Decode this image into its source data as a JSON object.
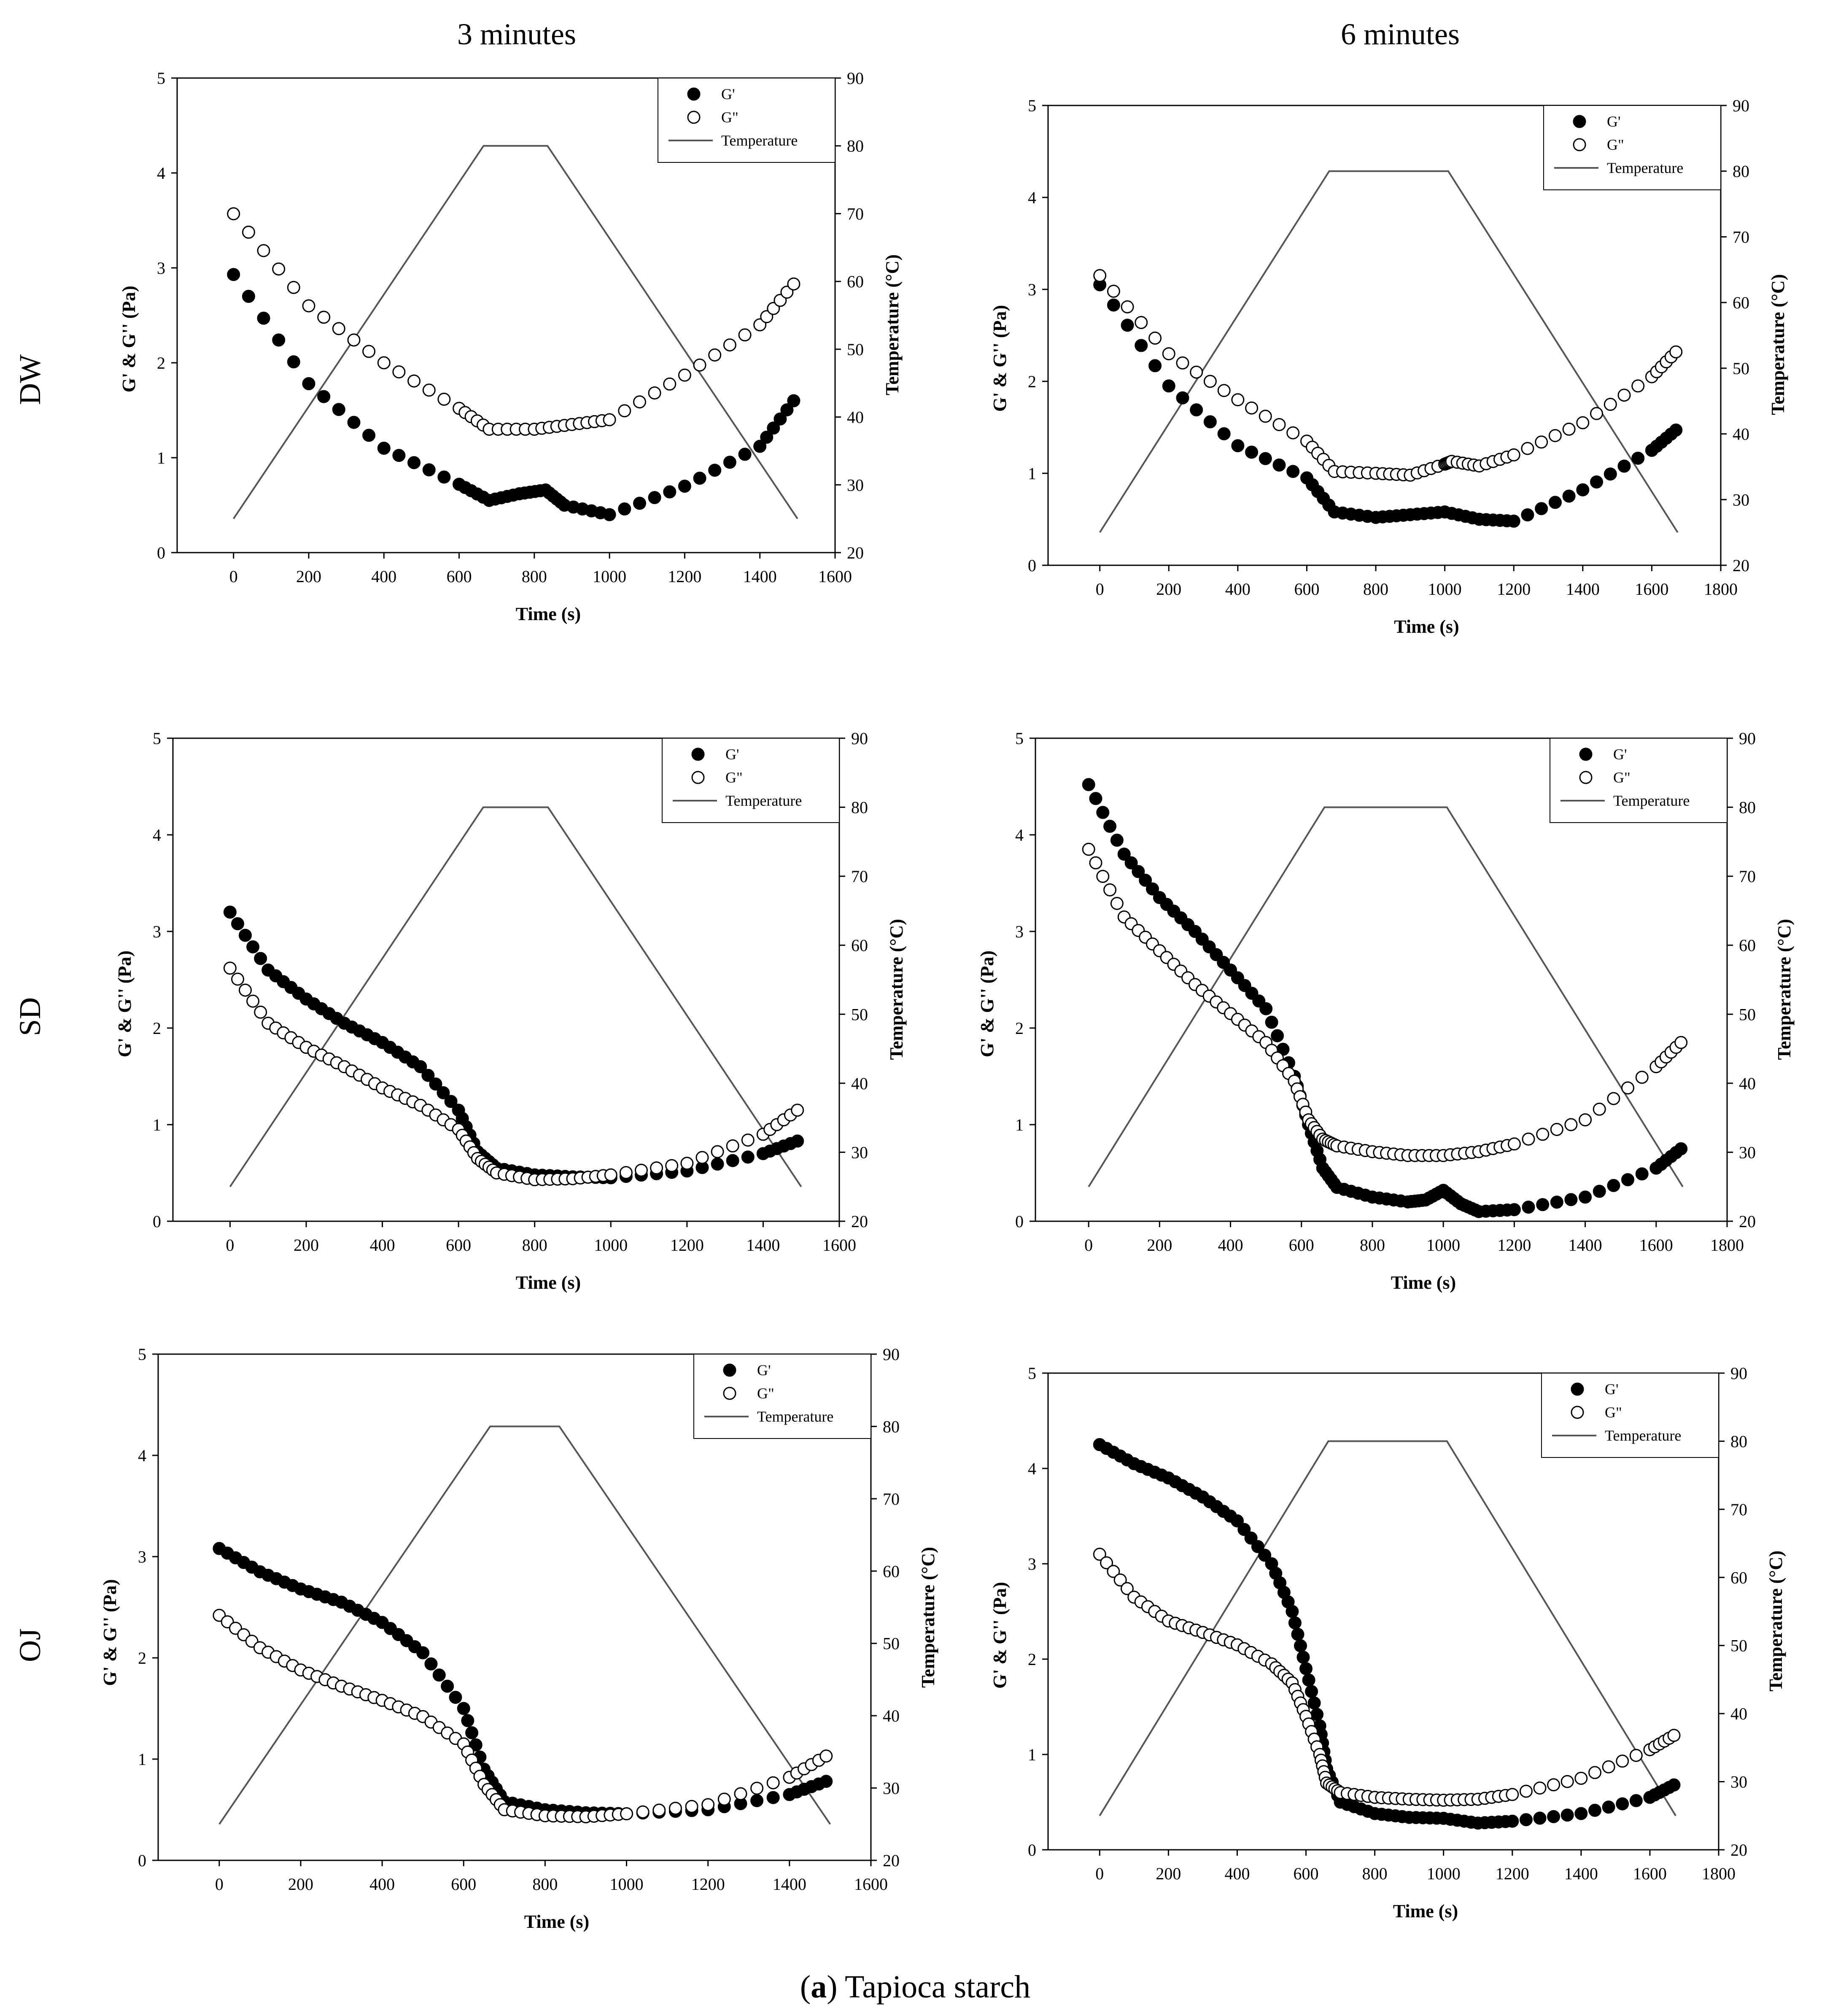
{
  "figure": {
    "col_titles": [
      "3 minutes",
      "6 minutes"
    ],
    "row_titles": [
      "DW",
      "SD",
      "OJ"
    ],
    "caption_bold": "a",
    "caption_rest": " Tapioca starch",
    "colors": {
      "filled": "#000000",
      "open": "#ffffff",
      "line": "#555555"
    }
  },
  "chart_data": [
    {
      "type": "scatter",
      "row": "DW",
      "col": "3 minutes",
      "xlabel": "Time (s)",
      "ylabel": "G' & G'' (Pa)",
      "y2label": "Temperature (°C)",
      "xlim": [
        -150,
        1600
      ],
      "ylim": [
        0,
        5
      ],
      "y2lim": [
        20,
        90
      ],
      "xticks": [
        0,
        200,
        400,
        600,
        800,
        1000,
        1200,
        1400,
        1600
      ],
      "yticks": [
        0,
        1,
        2,
        3,
        4,
        5
      ],
      "y2ticks": [
        20,
        30,
        40,
        50,
        60,
        70,
        80,
        90
      ],
      "legend": [
        "G'",
        "G\"",
        "Temperature"
      ],
      "legend_position": "top-right",
      "series": [
        {
          "name": "G'",
          "marker": "filled",
          "x": [
            0,
            200,
            400,
            600,
            680,
            760,
            830,
            880,
            1000,
            1200,
            1400,
            1490
          ],
          "y": [
            2.93,
            1.78,
            1.1,
            0.72,
            0.55,
            0.62,
            0.66,
            0.5,
            0.4,
            0.7,
            1.12,
            1.6
          ]
        },
        {
          "name": "G\"",
          "marker": "open",
          "x": [
            0,
            200,
            400,
            600,
            680,
            800,
            900,
            1000,
            1200,
            1400,
            1490
          ],
          "y": [
            3.57,
            2.6,
            2.0,
            1.52,
            1.3,
            1.3,
            1.35,
            1.4,
            1.87,
            2.4,
            2.83
          ]
        },
        {
          "name": "Temperature",
          "marker": "line",
          "x": [
            0,
            665,
            835,
            1500
          ],
          "y": [
            25,
            80,
            80,
            25
          ]
        }
      ]
    },
    {
      "type": "scatter",
      "row": "DW",
      "col": "6 minutes",
      "xlabel": "Time (s)",
      "ylabel": "G' & G'' (Pa)",
      "y2label": "Temperature (°C)",
      "xlim": [
        -150,
        1800
      ],
      "ylim": [
        0,
        5
      ],
      "y2lim": [
        20,
        90
      ],
      "xticks": [
        0,
        200,
        400,
        600,
        800,
        1000,
        1200,
        1400,
        1600,
        1800
      ],
      "yticks": [
        0,
        1,
        2,
        3,
        4,
        5
      ],
      "y2ticks": [
        20,
        30,
        40,
        50,
        60,
        70,
        80,
        90
      ],
      "legend": [
        "G'",
        "G\"",
        "Temperature"
      ],
      "legend_position": "top-right",
      "series": [
        {
          "name": "G'",
          "marker": "filled",
          "x": [
            0,
            200,
            400,
            600,
            680,
            800,
            900,
            1000,
            1100,
            1200,
            1400,
            1600,
            1670
          ],
          "y": [
            3.05,
            1.95,
            1.3,
            0.95,
            0.58,
            0.52,
            0.55,
            0.58,
            0.5,
            0.48,
            0.82,
            1.25,
            1.47
          ]
        },
        {
          "name": "G\"",
          "marker": "open",
          "x": [
            0,
            200,
            400,
            600,
            680,
            800,
            900,
            1000,
            1020,
            1100,
            1200,
            1400,
            1600,
            1670
          ],
          "y": [
            3.15,
            2.3,
            1.8,
            1.35,
            1.02,
            1.0,
            0.98,
            1.1,
            1.13,
            1.08,
            1.2,
            1.55,
            2.05,
            2.32
          ]
        },
        {
          "name": "Temperature",
          "marker": "line",
          "x": [
            0,
            665,
            1010,
            1675
          ],
          "y": [
            25,
            80,
            80,
            25
          ]
        }
      ]
    },
    {
      "type": "scatter",
      "row": "SD",
      "col": "3 minutes",
      "xlabel": "Time (s)",
      "ylabel": "G' & G'' (Pa)",
      "y2label": "Temperature (°C)",
      "xlim": [
        -150,
        1600
      ],
      "ylim": [
        0,
        5
      ],
      "y2lim": [
        20,
        90
      ],
      "xticks": [
        0,
        200,
        400,
        600,
        800,
        1000,
        1200,
        1400,
        1600
      ],
      "yticks": [
        0,
        1,
        2,
        3,
        4,
        5
      ],
      "y2ticks": [
        20,
        30,
        40,
        50,
        60,
        70,
        80,
        90
      ],
      "legend": [
        "G'",
        "G\"",
        "Temperature"
      ],
      "legend_position": "top-right",
      "series": [
        {
          "name": "G'",
          "marker": "filled",
          "x": [
            0,
            100,
            200,
            300,
            400,
            500,
            600,
            650,
            700,
            800,
            900,
            1000,
            1200,
            1400,
            1490
          ],
          "y": [
            3.2,
            2.6,
            2.3,
            2.05,
            1.85,
            1.6,
            1.15,
            0.72,
            0.55,
            0.48,
            0.46,
            0.45,
            0.52,
            0.7,
            0.83
          ]
        },
        {
          "name": "G\"",
          "marker": "open",
          "x": [
            0,
            100,
            200,
            300,
            400,
            500,
            600,
            650,
            700,
            800,
            900,
            1000,
            1200,
            1400,
            1490
          ],
          "y": [
            2.62,
            2.05,
            1.8,
            1.6,
            1.38,
            1.2,
            0.95,
            0.65,
            0.5,
            0.43,
            0.44,
            0.48,
            0.6,
            0.9,
            1.15
          ]
        },
        {
          "name": "Temperature",
          "marker": "line",
          "x": [
            0,
            665,
            835,
            1500
          ],
          "y": [
            25,
            80,
            80,
            25
          ]
        }
      ]
    },
    {
      "type": "scatter",
      "row": "SD",
      "col": "6 minutes",
      "xlabel": "Time (s)",
      "ylabel": "G' & G'' (Pa)",
      "y2label": "Temperature (°C)",
      "xlim": [
        -150,
        1800
      ],
      "ylim": [
        0,
        5
      ],
      "y2lim": [
        20,
        90
      ],
      "xticks": [
        0,
        200,
        400,
        600,
        800,
        1000,
        1200,
        1400,
        1600,
        1800
      ],
      "yticks": [
        0,
        1,
        2,
        3,
        4,
        5
      ],
      "y2ticks": [
        20,
        30,
        40,
        50,
        60,
        70,
        80,
        90
      ],
      "legend": [
        "G'",
        "G\"",
        "Temperature"
      ],
      "legend_position": "top-right",
      "series": [
        {
          "name": "G'",
          "marker": "filled",
          "x": [
            0,
            100,
            200,
            300,
            400,
            500,
            580,
            620,
            660,
            700,
            800,
            900,
            950,
            1000,
            1050,
            1100,
            1200,
            1400,
            1600,
            1670
          ],
          "y": [
            4.52,
            3.8,
            3.35,
            3.0,
            2.6,
            2.2,
            1.5,
            1.0,
            0.55,
            0.35,
            0.25,
            0.2,
            0.22,
            0.32,
            0.18,
            0.1,
            0.12,
            0.25,
            0.55,
            0.75
          ]
        },
        {
          "name": "G\"",
          "marker": "open",
          "x": [
            0,
            100,
            200,
            300,
            400,
            500,
            580,
            620,
            660,
            700,
            800,
            900,
            1000,
            1100,
            1200,
            1400,
            1600,
            1670
          ],
          "y": [
            3.85,
            3.15,
            2.8,
            2.45,
            2.15,
            1.85,
            1.45,
            1.05,
            0.85,
            0.78,
            0.72,
            0.68,
            0.68,
            0.72,
            0.8,
            1.05,
            1.6,
            1.85
          ]
        },
        {
          "name": "Temperature",
          "marker": "line",
          "x": [
            0,
            665,
            1010,
            1675
          ],
          "y": [
            25,
            80,
            80,
            25
          ]
        }
      ]
    },
    {
      "type": "scatter",
      "row": "OJ",
      "col": "3 minutes",
      "xlabel": "Time (s)",
      "ylabel": "G' & G'' (Pa)",
      "y2label": "Temperature (°C)",
      "xlim": [
        -150,
        1600
      ],
      "ylim": [
        0,
        5
      ],
      "y2lim": [
        20,
        90
      ],
      "xticks": [
        0,
        200,
        400,
        600,
        800,
        1000,
        1200,
        1400,
        1600
      ],
      "yticks": [
        0,
        1,
        2,
        3,
        4,
        5
      ],
      "y2ticks": [
        20,
        30,
        40,
        50,
        60,
        70,
        80,
        90
      ],
      "legend": [
        "G'",
        "G\"",
        "Temperature"
      ],
      "legend_position": "top-right",
      "series": [
        {
          "name": "G'",
          "marker": "filled",
          "x": [
            0,
            100,
            200,
            300,
            400,
            500,
            600,
            650,
            700,
            800,
            900,
            1000,
            1200,
            1400,
            1490
          ],
          "y": [
            3.08,
            2.85,
            2.68,
            2.55,
            2.35,
            2.05,
            1.5,
            0.9,
            0.58,
            0.5,
            0.47,
            0.46,
            0.5,
            0.65,
            0.78
          ]
        },
        {
          "name": "G\"",
          "marker": "open",
          "x": [
            0,
            100,
            200,
            300,
            400,
            500,
            600,
            650,
            700,
            800,
            900,
            1000,
            1200,
            1400,
            1490
          ],
          "y": [
            2.42,
            2.1,
            1.88,
            1.72,
            1.58,
            1.42,
            1.15,
            0.75,
            0.5,
            0.44,
            0.43,
            0.46,
            0.55,
            0.82,
            1.03
          ]
        },
        {
          "name": "Temperature",
          "marker": "line",
          "x": [
            0,
            665,
            835,
            1500
          ],
          "y": [
            25,
            80,
            80,
            25
          ]
        }
      ]
    },
    {
      "type": "scatter",
      "row": "OJ",
      "col": "6 minutes",
      "xlabel": "Time (s)",
      "ylabel": "G' & G'' (Pa)",
      "y2label": "Temperature (°C)",
      "xlim": [
        -150,
        1800
      ],
      "ylim": [
        0,
        5
      ],
      "y2lim": [
        20,
        90
      ],
      "xticks": [
        0,
        200,
        400,
        600,
        800,
        1000,
        1200,
        1400,
        1600,
        1800
      ],
      "yticks": [
        0,
        1,
        2,
        3,
        4,
        5
      ],
      "y2ticks": [
        20,
        30,
        40,
        50,
        60,
        70,
        80,
        90
      ],
      "legend": [
        "G'",
        "G\"",
        "Temperature"
      ],
      "legend_position": "top-right",
      "series": [
        {
          "name": "G'",
          "marker": "filled",
          "x": [
            0,
            100,
            200,
            300,
            400,
            500,
            560,
            600,
            640,
            660,
            700,
            800,
            900,
            1000,
            1100,
            1200,
            1400,
            1600,
            1670
          ],
          "y": [
            4.25,
            4.05,
            3.9,
            3.7,
            3.45,
            3.0,
            2.5,
            1.9,
            1.3,
            0.85,
            0.5,
            0.38,
            0.34,
            0.33,
            0.28,
            0.3,
            0.38,
            0.55,
            0.68
          ]
        },
        {
          "name": "G\"",
          "marker": "open",
          "x": [
            0,
            100,
            200,
            300,
            400,
            500,
            560,
            600,
            640,
            660,
            700,
            800,
            900,
            1000,
            1100,
            1200,
            1400,
            1600,
            1670
          ],
          "y": [
            3.1,
            2.65,
            2.4,
            2.28,
            2.15,
            1.95,
            1.75,
            1.4,
            1.0,
            0.7,
            0.6,
            0.55,
            0.53,
            0.52,
            0.53,
            0.58,
            0.75,
            1.05,
            1.2
          ]
        },
        {
          "name": "Temperature",
          "marker": "line",
          "x": [
            0,
            665,
            1010,
            1675
          ],
          "y": [
            25,
            80,
            80,
            25
          ]
        }
      ]
    }
  ]
}
